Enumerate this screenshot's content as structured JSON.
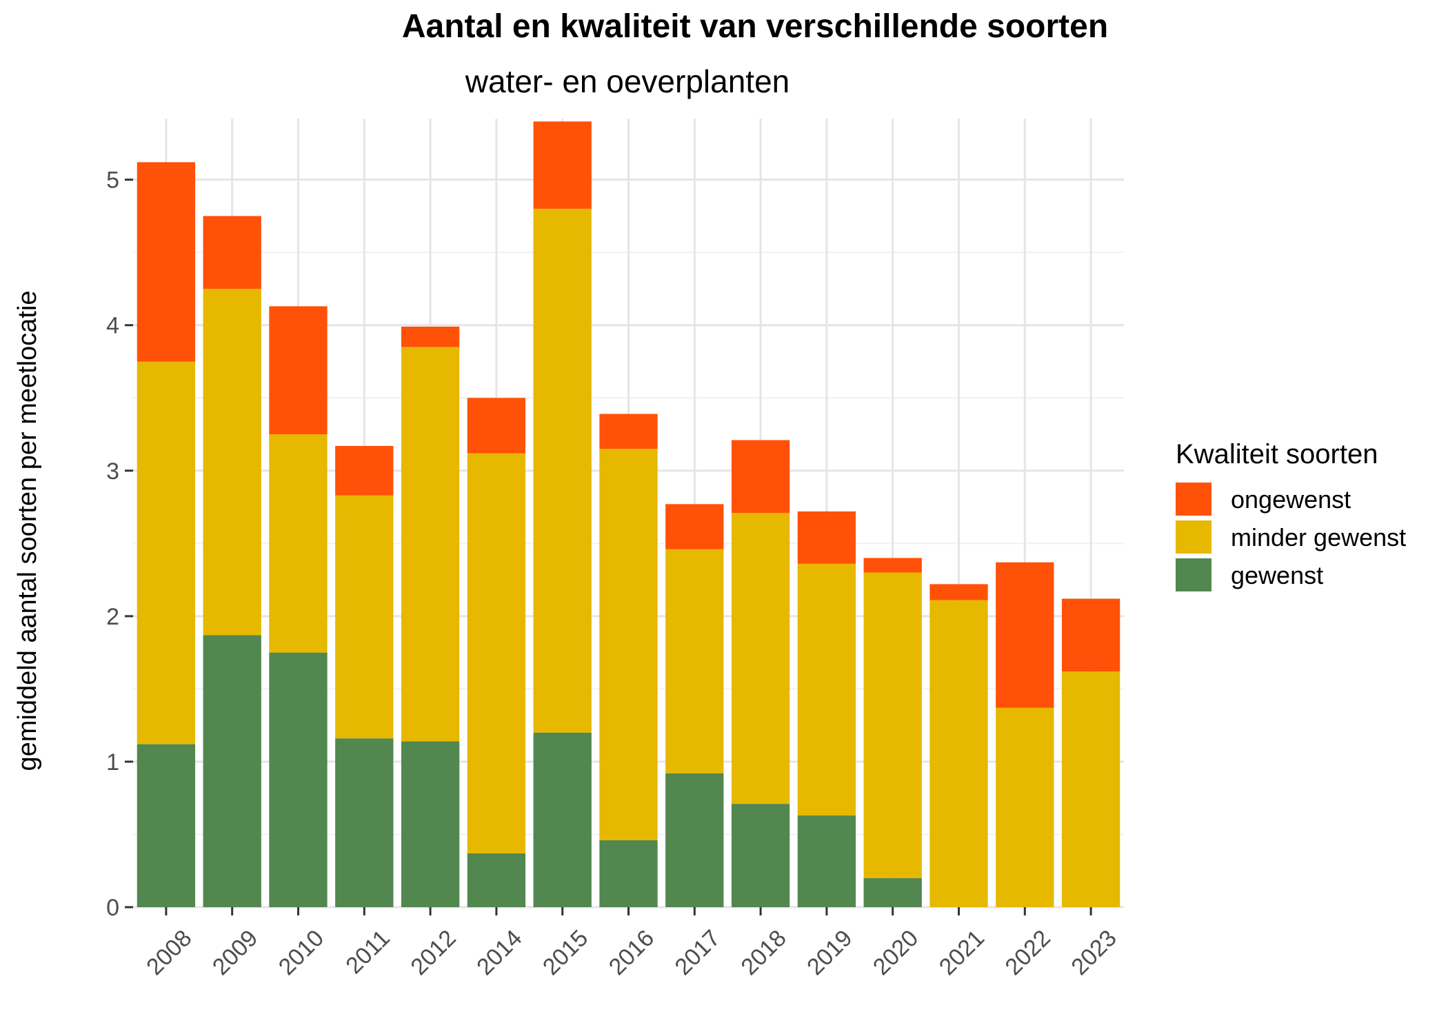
{
  "chart_data": {
    "type": "bar",
    "stacked": true,
    "title": "Aantal en kwaliteit van verschillende soorten",
    "subtitle": "water- en oeverplanten",
    "xlabel": "",
    "ylabel": "gemiddeld aantal soorten per meetlocatie",
    "ylim": [
      0,
      5.42
    ],
    "yticks": [
      0,
      1,
      2,
      3,
      4,
      5
    ],
    "grid": true,
    "legend_position": "right",
    "legend_title": "Kwaliteit soorten",
    "categories": [
      "2008",
      "2009",
      "2010",
      "2011",
      "2012",
      "2014",
      "2015",
      "2016",
      "2017",
      "2018",
      "2019",
      "2020",
      "2021",
      "2022",
      "2023"
    ],
    "series": [
      {
        "name": "gewenst",
        "color": "#52874F",
        "values": [
          1.12,
          1.87,
          1.75,
          1.16,
          1.14,
          0.37,
          1.2,
          0.46,
          0.92,
          0.71,
          0.63,
          0.2,
          0.0,
          0.0,
          0.0
        ]
      },
      {
        "name": "minder gewenst",
        "color": "#E6B800",
        "values": [
          2.63,
          2.38,
          1.5,
          1.67,
          2.71,
          2.75,
          3.6,
          2.69,
          1.54,
          2.0,
          1.73,
          2.1,
          2.11,
          1.37,
          1.62
        ]
      },
      {
        "name": "ongewenst",
        "color": "#FF5108",
        "values": [
          1.37,
          0.5,
          0.88,
          0.34,
          0.14,
          0.38,
          0.6,
          0.24,
          0.31,
          0.5,
          0.36,
          0.1,
          0.11,
          1.0,
          0.5
        ]
      }
    ],
    "legend_order": [
      "ongewenst",
      "minder gewenst",
      "gewenst"
    ]
  }
}
